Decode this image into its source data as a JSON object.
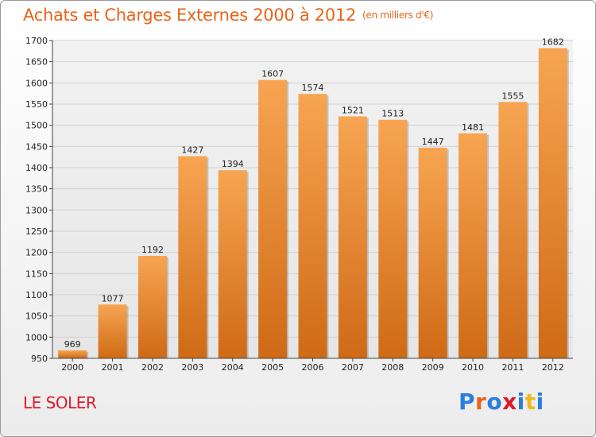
{
  "header": {
    "title": "Achats et Charges Externes 2000 à 2012",
    "subtitle": "(en milliers d'€)"
  },
  "footer": {
    "commune": "LE SOLER",
    "logo_letters": [
      "P",
      "r",
      "o",
      "x",
      "i",
      "t",
      "i"
    ],
    "logo_colors": [
      "#2a7de1",
      "#e8651a",
      "#2a7de1",
      "#e0192b",
      "#2a7de1",
      "#f2b81e",
      "#2a7de1"
    ]
  },
  "colors": {
    "bar_top": "#f7a552",
    "bar_bottom": "#cf6a16",
    "grid": "#d0d0d0",
    "axis": "#444444"
  },
  "chart_data": {
    "type": "bar",
    "title": "Achats et Charges Externes 2000 à 2012",
    "subtitle": "(en milliers d'€)",
    "xlabel": "",
    "ylabel": "",
    "categories": [
      "2000",
      "2001",
      "2002",
      "2003",
      "2004",
      "2005",
      "2006",
      "2007",
      "2008",
      "2009",
      "2010",
      "2011",
      "2012"
    ],
    "values": [
      969,
      1077,
      1192,
      1427,
      1394,
      1607,
      1574,
      1521,
      1513,
      1447,
      1481,
      1555,
      1682
    ],
    "ylim": [
      950,
      1700
    ],
    "yticks": [
      950,
      1000,
      1050,
      1100,
      1150,
      1200,
      1250,
      1300,
      1350,
      1400,
      1450,
      1500,
      1550,
      1600,
      1650,
      1700
    ],
    "grid": true,
    "legend": "none"
  }
}
